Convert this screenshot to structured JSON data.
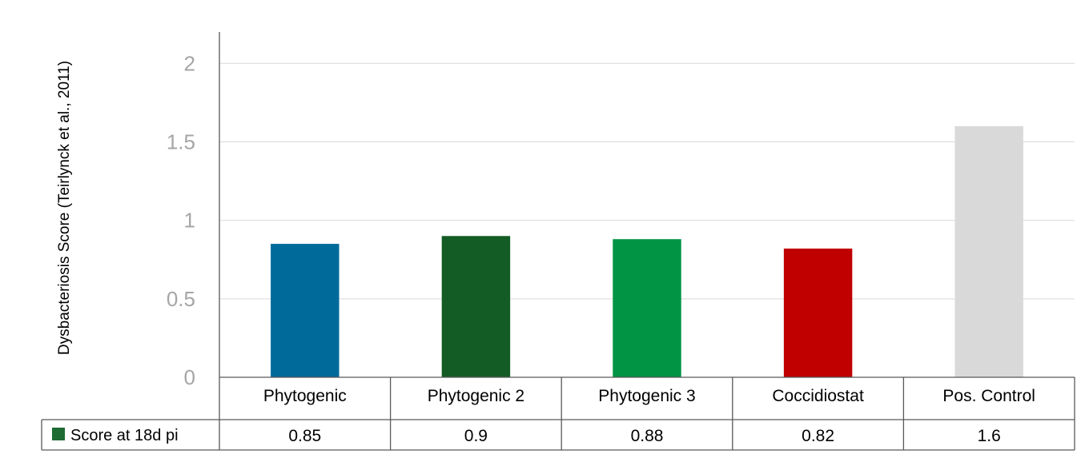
{
  "chart_data": {
    "type": "bar",
    "categories": [
      "Phytogenic",
      "Phytogenic 2",
      "Phytogenic 3",
      "Coccidiostat",
      "Pos. Control"
    ],
    "series": [
      {
        "name": "Score at 18d pi",
        "values": [
          0.85,
          0.9,
          0.88,
          0.82,
          1.6
        ],
        "legend_color": "#1e6b34"
      }
    ],
    "value_labels": [
      "0.85",
      "0.9",
      "0.88",
      "0.82",
      "1.6"
    ],
    "bar_colors": [
      "#006a9b",
      "#135c25",
      "#009444",
      "#c00000",
      "#d9d9d9"
    ],
    "ylabel": "Dysbacteriosis Score (Teirlynck et al., 2011)",
    "xlabel": "",
    "ylim": [
      0,
      2.2
    ],
    "yticks": [
      0,
      0.5,
      1,
      1.5,
      2
    ],
    "ytick_labels": [
      "0",
      "0.5",
      "1",
      "1.5",
      "2"
    ],
    "grid": true,
    "legend_placement": "data-table-left"
  }
}
